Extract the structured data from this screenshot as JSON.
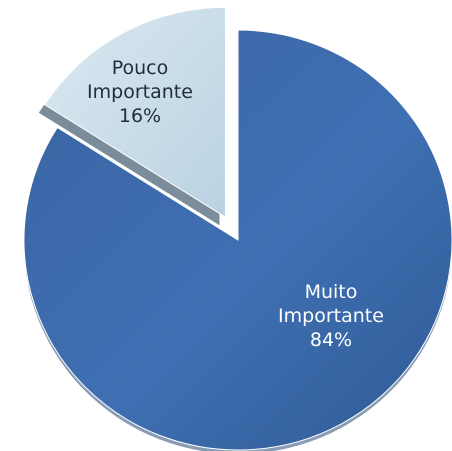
{
  "chart_data": {
    "type": "pie",
    "title": "",
    "slices": [
      {
        "label_line1": "Muito",
        "label_line2": "Importante",
        "value_text": "84%",
        "value": 84,
        "color": "#3f6fb0",
        "exploded": false
      },
      {
        "label_line1": "Pouco",
        "label_line2": "Importante",
        "value_text": "16%",
        "value": 16,
        "color": "#c9dde9",
        "exploded": true
      }
    ],
    "legend": "none"
  }
}
